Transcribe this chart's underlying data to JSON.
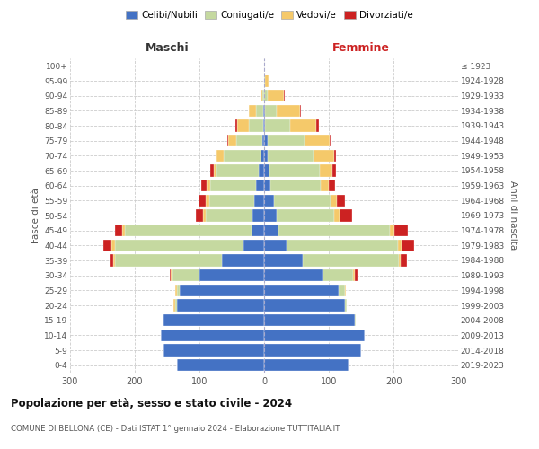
{
  "age_groups": [
    "0-4",
    "5-9",
    "10-14",
    "15-19",
    "20-24",
    "25-29",
    "30-34",
    "35-39",
    "40-44",
    "45-49",
    "50-54",
    "55-59",
    "60-64",
    "65-69",
    "70-74",
    "75-79",
    "80-84",
    "85-89",
    "90-94",
    "95-99",
    "100+"
  ],
  "birth_years": [
    "2019-2023",
    "2014-2018",
    "2009-2013",
    "2004-2008",
    "1999-2003",
    "1994-1998",
    "1989-1993",
    "1984-1988",
    "1979-1983",
    "1974-1978",
    "1969-1973",
    "1964-1968",
    "1959-1963",
    "1954-1958",
    "1949-1953",
    "1944-1948",
    "1939-1943",
    "1934-1938",
    "1929-1933",
    "1924-1928",
    "≤ 1923"
  ],
  "colors": {
    "celibe": "#4472c4",
    "coniugato": "#c5d9a0",
    "vedovo": "#f5c96a",
    "divorziato": "#cc2222"
  },
  "maschi_celibe": [
    135,
    155,
    160,
    155,
    135,
    130,
    100,
    65,
    32,
    20,
    18,
    15,
    12,
    8,
    5,
    3,
    2,
    1,
    0,
    0,
    0
  ],
  "maschi_coniugato": [
    0,
    0,
    0,
    2,
    3,
    5,
    42,
    165,
    198,
    195,
    72,
    70,
    72,
    65,
    58,
    40,
    22,
    12,
    3,
    0,
    0
  ],
  "maschi_vedovo": [
    0,
    0,
    0,
    0,
    2,
    2,
    2,
    3,
    6,
    5,
    5,
    5,
    5,
    5,
    10,
    12,
    18,
    10,
    3,
    0,
    0
  ],
  "maschi_divorziato": [
    0,
    0,
    0,
    0,
    0,
    0,
    2,
    5,
    12,
    10,
    10,
    12,
    8,
    5,
    2,
    2,
    2,
    0,
    0,
    0,
    0
  ],
  "femmine_celibe": [
    130,
    150,
    155,
    140,
    125,
    115,
    90,
    60,
    35,
    22,
    20,
    15,
    10,
    8,
    5,
    5,
    2,
    2,
    0,
    0,
    0
  ],
  "femmine_coniugato": [
    0,
    0,
    0,
    2,
    3,
    10,
    48,
    148,
    172,
    172,
    88,
    88,
    78,
    78,
    72,
    58,
    38,
    18,
    5,
    2,
    0
  ],
  "femmine_vedovo": [
    0,
    0,
    0,
    0,
    0,
    2,
    2,
    3,
    5,
    8,
    8,
    10,
    12,
    20,
    32,
    38,
    40,
    35,
    25,
    5,
    0
  ],
  "femmine_divorziato": [
    0,
    0,
    0,
    0,
    0,
    0,
    5,
    10,
    20,
    20,
    20,
    12,
    10,
    5,
    2,
    2,
    5,
    2,
    2,
    2,
    0
  ],
  "title": "Popolazione per età, sesso e stato civile - 2024",
  "subtitle": "COMUNE DI BELLONA (CE) - Dati ISTAT 1° gennaio 2024 - Elaborazione TUTTITALIA.IT",
  "xlabel_left": "Maschi",
  "xlabel_right": "Femmine",
  "ylabel_left": "Fasce di età",
  "ylabel_right": "Anni di nascita",
  "xlim": 300,
  "background_color": "#ffffff",
  "grid_color": "#cccccc",
  "legend_labels": [
    "Celibi/Nubili",
    "Coniugati/e",
    "Vedovi/e",
    "Divorziati/e"
  ]
}
